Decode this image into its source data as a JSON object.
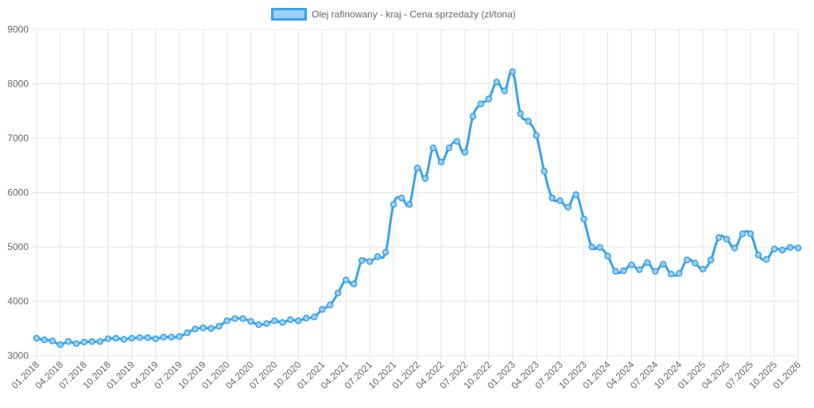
{
  "chart_data": {
    "type": "line",
    "legend": {
      "label": "Olej rafinowany - kraj - Cena sprzedaży (zł/tona)",
      "placement": "top-center"
    },
    "ylim": [
      3000,
      9000
    ],
    "y_ticks": [
      "3000",
      "4000",
      "5000",
      "6000",
      "7000",
      "8000",
      "9000"
    ],
    "x_ticks": [
      "01.2018",
      "04.2018",
      "07.2018",
      "10.2018",
      "01.2019",
      "04.2019",
      "07.2019",
      "10.2019",
      "01.2020",
      "04.2020",
      "07.2020",
      "10.2020",
      "01.2021",
      "04.2021",
      "07.2021",
      "10.2021",
      "01.2022",
      "04.2022",
      "07.2022",
      "10.2022",
      "01.2023",
      "04.2023",
      "07.2023",
      "10.2023",
      "01.2024",
      "04.2024",
      "07.2024",
      "10.2024",
      "01.2025",
      "04.2025",
      "07.2025",
      "10.2025",
      "01.2026"
    ],
    "grid": true,
    "colors": {
      "line": "#36a2eb",
      "fill": "#9ad0f5"
    },
    "series": [
      {
        "name": "Olej rafinowany - kraj - Cena sprzedaży (zł/tona)",
        "x": [
          "01.2018",
          "02.2018",
          "03.2018",
          "04.2018",
          "05.2018",
          "06.2018",
          "07.2018",
          "08.2018",
          "09.2018",
          "10.2018",
          "11.2018",
          "12.2018",
          "01.2019",
          "02.2019",
          "03.2019",
          "04.2019",
          "05.2019",
          "06.2019",
          "07.2019",
          "08.2019",
          "09.2019",
          "10.2019",
          "11.2019",
          "12.2019",
          "01.2020",
          "02.2020",
          "03.2020",
          "04.2020",
          "05.2020",
          "06.2020",
          "07.2020",
          "08.2020",
          "09.2020",
          "10.2020",
          "11.2020",
          "12.2020",
          "01.2021",
          "02.2021",
          "03.2021",
          "04.2021",
          "05.2021",
          "06.2021",
          "07.2021",
          "08.2021",
          "09.2021",
          "10.2021",
          "11.2021",
          "12.2021",
          "01.2022",
          "02.2022",
          "03.2022",
          "04.2022",
          "05.2022",
          "06.2022",
          "07.2022",
          "08.2022",
          "09.2022",
          "10.2022",
          "11.2022",
          "12.2022",
          "01.2023",
          "02.2023",
          "03.2023",
          "04.2023",
          "05.2023",
          "06.2023",
          "07.2023",
          "08.2023",
          "09.2023",
          "10.2023",
          "11.2023",
          "12.2023",
          "01.2024",
          "02.2024",
          "03.2024",
          "04.2024",
          "05.2024",
          "06.2024",
          "07.2024",
          "08.2024",
          "09.2024",
          "10.2024",
          "11.2024",
          "12.2024",
          "01.2025",
          "02.2025",
          "03.2025",
          "04.2025",
          "05.2025",
          "06.2025",
          "07.2025",
          "08.2025",
          "09.2025",
          "10.2025",
          "11.2025",
          "12.2025",
          "01.2026"
        ],
        "values": [
          3320,
          3290,
          3270,
          3200,
          3260,
          3220,
          3250,
          3260,
          3260,
          3310,
          3320,
          3300,
          3320,
          3330,
          3330,
          3310,
          3340,
          3340,
          3350,
          3420,
          3490,
          3510,
          3500,
          3540,
          3640,
          3680,
          3680,
          3630,
          3570,
          3590,
          3640,
          3610,
          3660,
          3640,
          3690,
          3710,
          3850,
          3930,
          4150,
          4390,
          4320,
          4750,
          4730,
          4820,
          4900,
          5780,
          5900,
          5780,
          6450,
          6260,
          6820,
          6560,
          6820,
          6940,
          6740,
          7400,
          7630,
          7720,
          8030,
          7870,
          8220,
          7450,
          7310,
          7050,
          6390,
          5900,
          5850,
          5730,
          5960,
          5510,
          5000,
          4990,
          4830,
          4550,
          4560,
          4670,
          4580,
          4710,
          4550,
          4680,
          4500,
          4510,
          4760,
          4700,
          4590,
          4760,
          5170,
          5140,
          4980,
          5240,
          5240,
          4850,
          4770,
          4960,
          4940,
          4990,
          4980
        ]
      }
    ]
  }
}
